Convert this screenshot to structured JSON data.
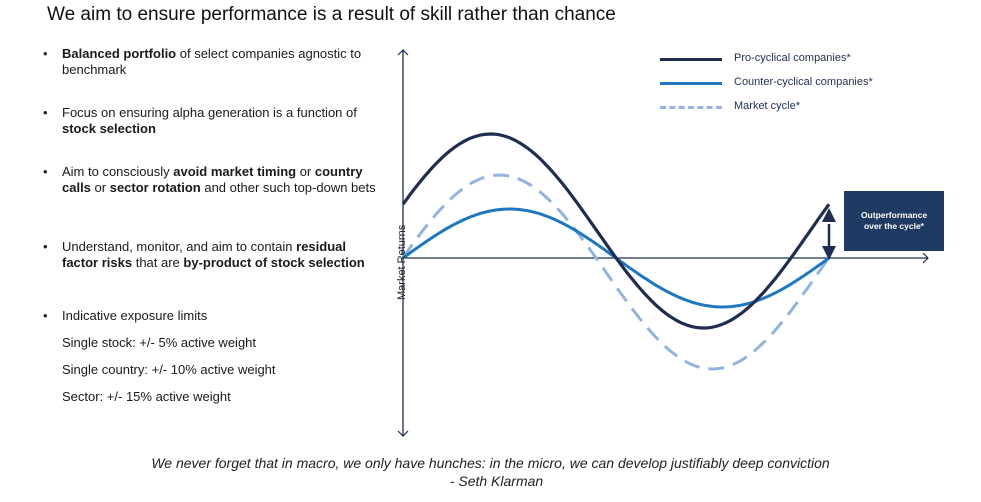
{
  "title": "We aim to ensure performance is a result of skill rather than chance",
  "bullets": [
    {
      "parts": [
        {
          "text": "Balanced portfolio",
          "bold": true
        },
        {
          "text": " of select companies agnostic to benchmark",
          "bold": false
        }
      ]
    },
    {
      "parts": [
        {
          "text": "Focus on ensuring alpha generation is a function of ",
          "bold": false
        },
        {
          "text": "stock selection",
          "bold": true
        }
      ]
    },
    {
      "parts": [
        {
          "text": "Aim to consciously ",
          "bold": false
        },
        {
          "text": "avoid market timing",
          "bold": true
        },
        {
          "text": " or ",
          "bold": false
        },
        {
          "text": "country calls",
          "bold": true
        },
        {
          "text": " or ",
          "bold": false
        },
        {
          "text": "sector rotation",
          "bold": true
        },
        {
          "text": " and other such top-down bets",
          "bold": false
        }
      ]
    },
    {
      "parts": [
        {
          "text": "Understand, monitor, and aim to contain ",
          "bold": false
        },
        {
          "text": "residual factor risks",
          "bold": true
        },
        {
          "text": " that are ",
          "bold": false
        },
        {
          "text": "by-product of stock selection",
          "bold": true
        }
      ]
    },
    {
      "parts": [
        {
          "text": "Indicative exposure limits",
          "bold": false
        }
      ]
    }
  ],
  "limits": [
    "Single stock: +/- 5% active weight",
    "Single country: +/- 10% active weight",
    "Sector: +/- 15% active weight"
  ],
  "diagram": {
    "ylabel": "Market Returns",
    "legend": [
      {
        "label": "Pro-cyclical companies*",
        "color": "#1f2d52",
        "style": "solid"
      },
      {
        "label": "Counter-cyclical companies*",
        "color": "#1d78c1",
        "style": "solid"
      },
      {
        "label": "Market cycle*",
        "color": "#93b3e0",
        "style": "dashed"
      }
    ],
    "callout": {
      "line1": "Outperformance",
      "line2": "over the cycle*"
    }
  },
  "quote": {
    "text": "We never forget that in macro, we only have hunches: in the micro, we can develop justifiably deep conviction",
    "author": "- Seth Klarman"
  }
}
